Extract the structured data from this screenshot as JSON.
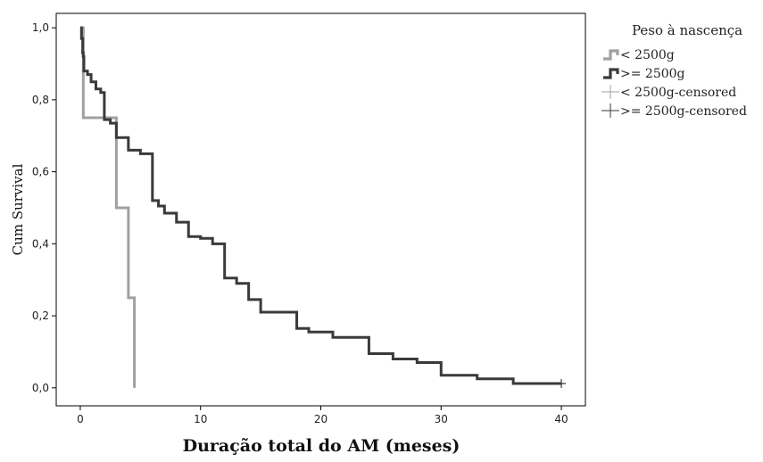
{
  "chart_data": {
    "type": "line",
    "xlabel": "Duração total do AM (meses)",
    "ylabel": "Cum Survival",
    "xlim": [
      -2,
      42
    ],
    "ylim": [
      -0.05,
      1.04
    ],
    "x_ticks": [
      0,
      10,
      20,
      30,
      40
    ],
    "x_tick_labels": [
      "0",
      "10",
      "20",
      "30",
      "40"
    ],
    "y_ticks": [
      0.0,
      0.2,
      0.4,
      0.6,
      0.8,
      1.0
    ],
    "y_tick_labels": [
      "0,0",
      "0,2",
      "0,4",
      "0,6",
      "0,8",
      "1,0"
    ],
    "grid": false,
    "legend": {
      "title": "Peso à nascença",
      "placement": "right",
      "entries": [
        "< 2500g",
        ">= 2500g",
        "< 2500g-censored",
        ">= 2500g-censored"
      ]
    },
    "series": [
      {
        "name": "< 2500g",
        "color": "#a0a0a0",
        "steps": [
          [
            0,
            1.0
          ],
          [
            0.25,
            0.75
          ],
          [
            3,
            0.5
          ],
          [
            4,
            0.25
          ],
          [
            4.5,
            0.0
          ]
        ]
      },
      {
        "name": ">= 2500g",
        "color": "#3a3a3a",
        "steps": [
          [
            0,
            1.0
          ],
          [
            0.1,
            0.97
          ],
          [
            0.2,
            0.93
          ],
          [
            0.25,
            0.92
          ],
          [
            0.3,
            0.88
          ],
          [
            0.6,
            0.87
          ],
          [
            0.9,
            0.85
          ],
          [
            1.3,
            0.83
          ],
          [
            1.7,
            0.82
          ],
          [
            2.0,
            0.745
          ],
          [
            2.5,
            0.735
          ],
          [
            3.0,
            0.695
          ],
          [
            4.0,
            0.66
          ],
          [
            5.0,
            0.65
          ],
          [
            6.0,
            0.52
          ],
          [
            6.5,
            0.505
          ],
          [
            7.0,
            0.485
          ],
          [
            8.0,
            0.46
          ],
          [
            9.0,
            0.42
          ],
          [
            10.0,
            0.415
          ],
          [
            11.0,
            0.4
          ],
          [
            12.0,
            0.305
          ],
          [
            13.0,
            0.29
          ],
          [
            14.0,
            0.245
          ],
          [
            15.0,
            0.21
          ],
          [
            18.0,
            0.165
          ],
          [
            19.0,
            0.155
          ],
          [
            21.0,
            0.14
          ],
          [
            24.0,
            0.095
          ],
          [
            26.0,
            0.08
          ],
          [
            28.0,
            0.07
          ],
          [
            30.0,
            0.035
          ],
          [
            33.0,
            0.025
          ],
          [
            36.0,
            0.012
          ],
          [
            40.0,
            0.012
          ]
        ],
        "censored": [
          [
            40.0,
            0.012
          ]
        ]
      }
    ]
  }
}
